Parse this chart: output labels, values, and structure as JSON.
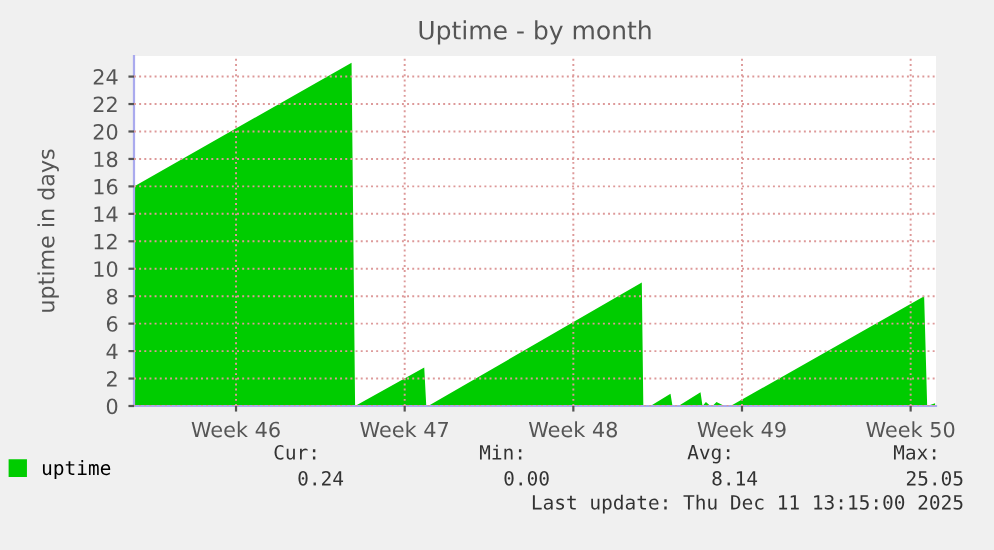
{
  "chart_data": {
    "type": "area",
    "title": "Uptime - by month",
    "ylabel": "uptime in days",
    "x": [
      "2025-11-08T06:22",
      "2025-11-17T07:05",
      "2025-11-17T10:36",
      "2025-11-20T07:29",
      "2025-11-20T09:30",
      "2025-11-20T11:21",
      "2025-11-29T08:12",
      "2025-11-29T09:43",
      "2025-11-29T16:47",
      "2025-11-30T12:46",
      "2025-11-30T14:47",
      "2025-11-30T20:40",
      "2025-12-01T18:40",
      "2025-12-01T20:41",
      "2025-12-02T00:03",
      "2025-12-02T04:35",
      "2025-12-02T06:36",
      "2025-12-02T10:38",
      "2025-12-02T18:32",
      "2025-12-02T20:33",
      "2025-12-03T00:35",
      "2025-12-11T01:26",
      "2025-12-11T04:28",
      "2025-12-11T12:21"
    ],
    "series": [
      {
        "name": "uptime",
        "color": "#00cc00",
        "values": [
          16,
          25.0,
          0,
          2.8,
          0,
          0,
          9.0,
          0,
          0,
          0.9,
          0,
          0,
          1.0,
          0,
          0.3,
          0,
          0,
          0.3,
          0,
          0,
          0,
          8.0,
          0,
          0.2
        ]
      }
    ],
    "xlim": [
      "2025-11-08T06:22",
      "2025-12-11T13:15"
    ],
    "ylim": [
      0,
      25.5
    ],
    "xticks": [
      {
        "value": "2025-11-12T12:00",
        "label": "Week 46"
      },
      {
        "value": "2025-11-19T12:00",
        "label": "Week 47"
      },
      {
        "value": "2025-11-26T12:00",
        "label": "Week 48"
      },
      {
        "value": "2025-12-03T12:00",
        "label": "Week 49"
      },
      {
        "value": "2025-12-10T12:00",
        "label": "Week 50"
      }
    ],
    "yticks": [
      0,
      2,
      4,
      6,
      8,
      10,
      12,
      14,
      16,
      18,
      20,
      22,
      24
    ],
    "grid": true,
    "legend": "bottom",
    "annotations": [
      "Cur:",
      "Min:",
      "Avg:",
      "Max:",
      "0.24",
      "0.00",
      "8.14",
      "25.05",
      "Last update: Thu Dec 11 13:15:00 2025"
    ]
  }
}
